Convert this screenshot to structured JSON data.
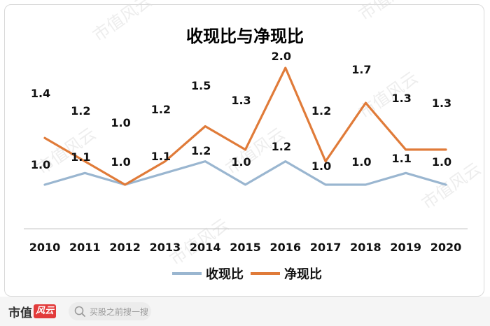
{
  "chart_data": {
    "type": "line",
    "title": "收现比与净现比",
    "categories": [
      "2010",
      "2011",
      "2012",
      "2013",
      "2014",
      "2015",
      "2016",
      "2017",
      "2018",
      "2019",
      "2020"
    ],
    "series": [
      {
        "name": "收现比",
        "color": "#9ab6d0",
        "values": [
          1.0,
          1.1,
          1.0,
          1.1,
          1.2,
          1.0,
          1.2,
          1.0,
          1.0,
          1.1,
          1.0
        ]
      },
      {
        "name": "净现比",
        "color": "#e07b39",
        "values": [
          1.4,
          1.2,
          1.0,
          1.2,
          1.5,
          1.3,
          2.0,
          1.2,
          1.7,
          1.3,
          1.3
        ]
      }
    ],
    "xlabel": "",
    "ylabel": "",
    "grid": false,
    "legend": "bottom"
  },
  "footer": {
    "brand_text": "市值",
    "brand_mark_text": "风云",
    "search_placeholder": "买股之前搜一搜"
  },
  "watermark_text": "市值风云"
}
